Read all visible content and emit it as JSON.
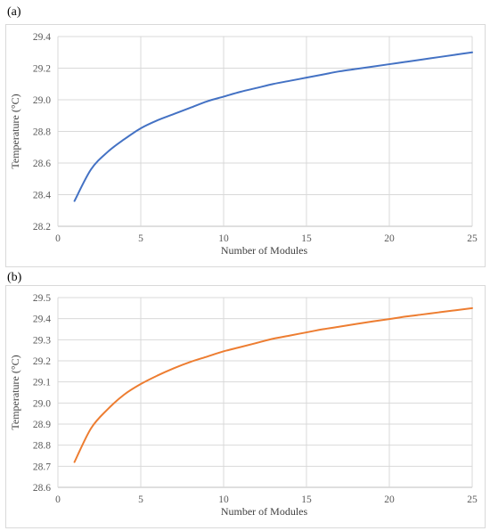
{
  "panels": [
    {
      "label": "(a)"
    },
    {
      "label": "(b)"
    }
  ],
  "chart_data": [
    {
      "type": "line",
      "title": "",
      "xlabel": "Number of Modules",
      "ylabel": "Temperature (°C)",
      "xlim": [
        0,
        25
      ],
      "ylim": [
        28.2,
        29.4
      ],
      "xticks": [
        "0",
        "5",
        "10",
        "15",
        "20",
        "25"
      ],
      "yticks": [
        "28.2",
        "28.4",
        "28.6",
        "28.8",
        "29.0",
        "29.2",
        "29.4"
      ],
      "grid": true,
      "color": "#4472c4",
      "series": [
        {
          "x": [
            1,
            2,
            3,
            4,
            5,
            6,
            7,
            8,
            9,
            10,
            11,
            12,
            13,
            14,
            15,
            16,
            17,
            18,
            19,
            20,
            21,
            22,
            23,
            24,
            25
          ],
          "values": [
            28.36,
            28.56,
            28.67,
            28.75,
            28.82,
            28.87,
            28.91,
            28.95,
            28.99,
            29.02,
            29.05,
            29.075,
            29.1,
            29.12,
            29.14,
            29.16,
            29.18,
            29.195,
            29.21,
            29.225,
            29.24,
            29.255,
            29.27,
            29.285,
            29.3
          ]
        }
      ]
    },
    {
      "type": "line",
      "title": "",
      "xlabel": "Number of Modules",
      "ylabel": "Temperature (°C)",
      "xlim": [
        0,
        25
      ],
      "ylim": [
        28.6,
        29.5
      ],
      "xticks": [
        "0",
        "5",
        "10",
        "15",
        "20",
        "25"
      ],
      "yticks": [
        "28.6",
        "28.7",
        "28.8",
        "28.9",
        "29.0",
        "29.1",
        "29.2",
        "29.3",
        "29.4",
        "29.5"
      ],
      "grid": true,
      "color": "#ed7d31",
      "series": [
        {
          "x": [
            1,
            2,
            3,
            4,
            5,
            6,
            7,
            8,
            9,
            10,
            11,
            12,
            13,
            14,
            15,
            16,
            17,
            18,
            19,
            20,
            21,
            22,
            23,
            24,
            25
          ],
          "values": [
            28.72,
            28.88,
            28.97,
            29.04,
            29.09,
            29.13,
            29.165,
            29.195,
            29.22,
            29.245,
            29.265,
            29.285,
            29.305,
            29.32,
            29.335,
            29.35,
            29.362,
            29.375,
            29.387,
            29.398,
            29.41,
            29.42,
            29.43,
            29.44,
            29.45
          ]
        }
      ]
    }
  ]
}
